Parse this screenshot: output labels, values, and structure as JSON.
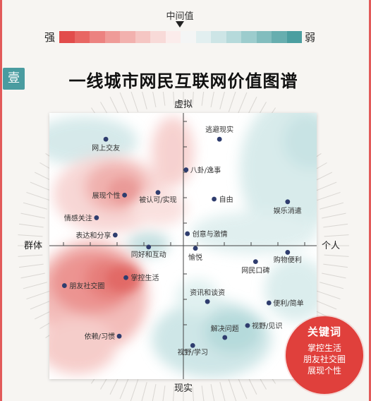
{
  "legend": {
    "mid_label": "中间值",
    "strong_label": "强",
    "weak_label": "弱",
    "colors": [
      "#e24c4b",
      "#e86663",
      "#ec8280",
      "#ef9b98",
      "#f2b1ae",
      "#f5c6c3",
      "#f8dad8",
      "#fbeceb",
      "#f4f5f5",
      "#e2eff0",
      "#cde5e6",
      "#b6dadb",
      "#9ccccd",
      "#82bdbe",
      "#67aeaf",
      "#4b9ea0"
    ]
  },
  "section": {
    "badge": "壹",
    "title": "一线城市网民互联网价值图谱"
  },
  "chart_data": {
    "type": "scatter",
    "axes": {
      "top": "虚拟",
      "bottom": "现实",
      "left": "群体",
      "right": "个人"
    },
    "xlim": [
      -10,
      10
    ],
    "ylim": [
      -10,
      10
    ],
    "grid": false,
    "points": [
      {
        "label": "网上交友",
        "x": -5.8,
        "y": 8.0
      },
      {
        "label": "逃避现实",
        "x": 2.7,
        "y": 8.0
      },
      {
        "label": "八卦/逸事",
        "x": 0.2,
        "y": 5.7
      },
      {
        "label": "展现个性",
        "x": -4.4,
        "y": 3.8
      },
      {
        "label": "被认可/实现",
        "x": -1.9,
        "y": 4.0
      },
      {
        "label": "自由",
        "x": 2.3,
        "y": 3.5
      },
      {
        "label": "娱乐消遣",
        "x": 7.8,
        "y": 3.3
      },
      {
        "label": "情感关注",
        "x": -6.5,
        "y": 2.1
      },
      {
        "label": "表达和分享",
        "x": -5.1,
        "y": 0.8
      },
      {
        "label": "创意与激情",
        "x": 0.3,
        "y": 0.9
      },
      {
        "label": "同好和互动",
        "x": -2.6,
        "y": -0.1
      },
      {
        "label": "愉悦",
        "x": 0.9,
        "y": -0.2
      },
      {
        "label": "购物便利",
        "x": 7.8,
        "y": -0.5
      },
      {
        "label": "网民口碑",
        "x": 5.4,
        "y": -1.2
      },
      {
        "label": "掌控生活",
        "x": -4.3,
        "y": -2.4
      },
      {
        "label": "朋友社交圈",
        "x": -8.9,
        "y": -3.0
      },
      {
        "label": "资讯和谈资",
        "x": 1.8,
        "y": -4.2
      },
      {
        "label": "便利/简单",
        "x": 6.4,
        "y": -4.3
      },
      {
        "label": "视野/见识",
        "x": 4.8,
        "y": -6.0
      },
      {
        "label": "依赖/习惯",
        "x": -4.8,
        "y": -6.8
      },
      {
        "label": "解决问题",
        "x": 3.1,
        "y": -6.9
      },
      {
        "label": "视野/学习",
        "x": 0.7,
        "y": -7.5
      }
    ]
  },
  "keywords": {
    "title": "关键词",
    "items": [
      "掌控生活",
      "朋友社交圈",
      "展现个性"
    ],
    "color": "#e0403c"
  }
}
